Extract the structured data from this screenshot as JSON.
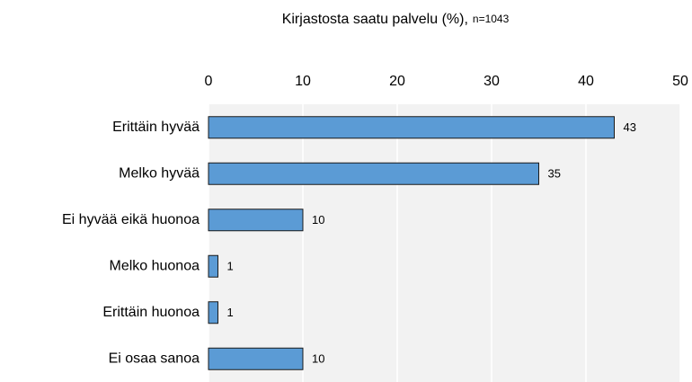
{
  "chart_data": {
    "type": "bar",
    "orientation": "horizontal",
    "title": "Kirjastosta saatu palvelu (%),",
    "subtitle": "n=1043",
    "categories": [
      "Erittäin hyvää",
      "Melko hyvää",
      "Ei hyvää eikä huonoa",
      "Melko huonoa",
      "Erittäin huonoa",
      "Ei osaa sanoa"
    ],
    "values": [
      43,
      35,
      10,
      1,
      1,
      10
    ],
    "color": "#5b9bd5",
    "xlim": [
      0,
      50
    ],
    "xticks": [
      0,
      10,
      20,
      30,
      40,
      50
    ],
    "grid": true
  }
}
